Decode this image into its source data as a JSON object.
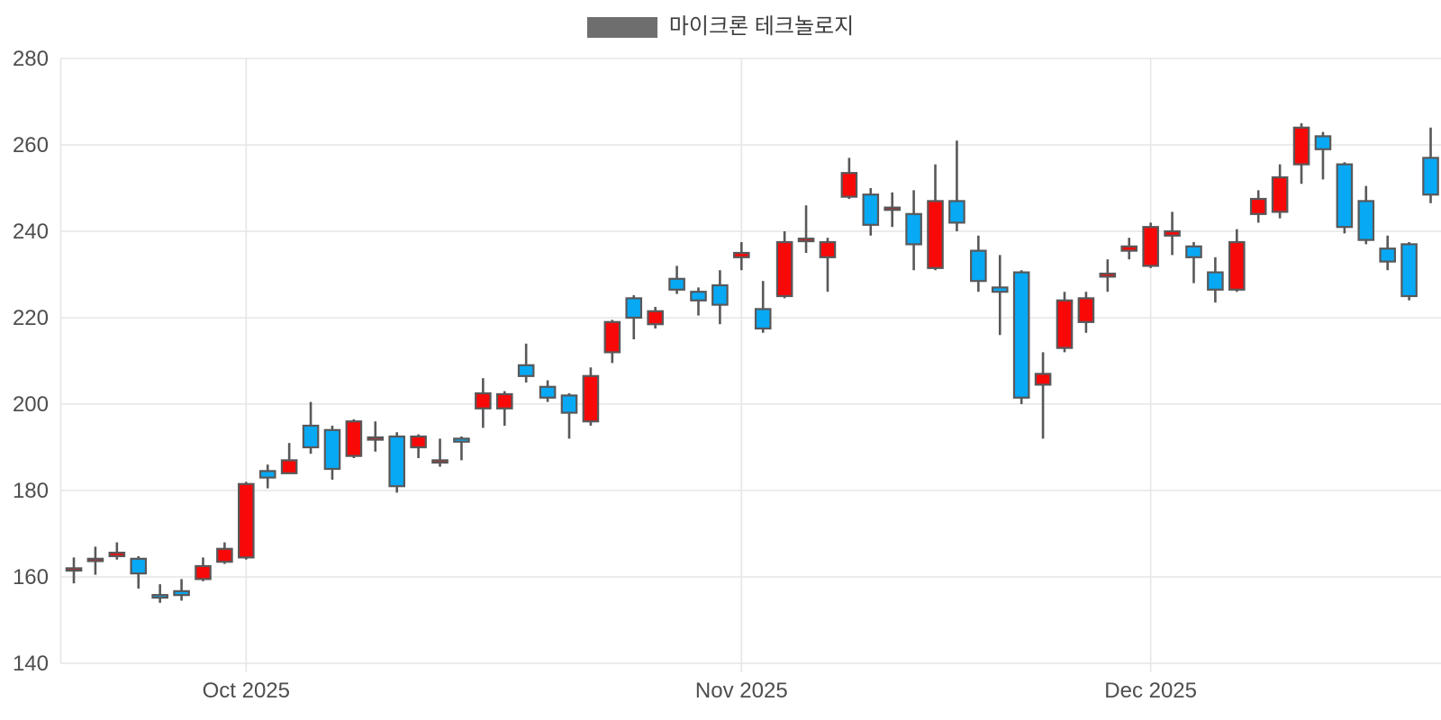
{
  "legend": {
    "series_label": "마이크론 테크놀로지",
    "swatch_color": "#6e6e6e"
  },
  "chart_data": {
    "type": "candlestick",
    "title": "",
    "series_name": "마이크론 테크놀로지",
    "grid": true,
    "legend_position": "top-center",
    "y_axis": {
      "min": 140,
      "max": 280,
      "tick_step": 20,
      "tick_labels": [
        "140",
        "160",
        "180",
        "200",
        "220",
        "240",
        "260",
        "280"
      ]
    },
    "x_axis": {
      "ticks": [
        {
          "index": 8,
          "label": "Oct 2025"
        },
        {
          "index": 31,
          "label": "Nov 2025"
        },
        {
          "index": 50,
          "label": "Dec 2025"
        }
      ]
    },
    "colors": {
      "up": "#f90808",
      "down": "#07a9f4",
      "outline": "#58585a",
      "grid": "#e6e6e6",
      "axis_text": "#4e4e50"
    },
    "candles_format": [
      "open",
      "high",
      "low",
      "close"
    ],
    "candles": [
      [
        161.5,
        164.5,
        158.5,
        162.0
      ],
      [
        163.8,
        167.0,
        160.5,
        164.2
      ],
      [
        164.8,
        168.0,
        164.0,
        165.6
      ],
      [
        164.2,
        164.8,
        157.3,
        160.8
      ],
      [
        155.8,
        158.3,
        154.0,
        155.2
      ],
      [
        156.7,
        159.5,
        154.5,
        155.8
      ],
      [
        159.5,
        164.5,
        159.0,
        162.5
      ],
      [
        163.5,
        168.0,
        163.0,
        166.5
      ],
      [
        164.5,
        182.0,
        164.0,
        181.5
      ],
      [
        184.5,
        186.0,
        180.5,
        183.0
      ],
      [
        184.0,
        191.0,
        184.0,
        187.0
      ],
      [
        195.0,
        200.5,
        188.5,
        190.0
      ],
      [
        194.0,
        195.0,
        182.5,
        185.0
      ],
      [
        188.0,
        196.5,
        187.5,
        196.0
      ],
      [
        192.0,
        196.0,
        189.0,
        192.3
      ],
      [
        192.5,
        193.5,
        179.5,
        181.0
      ],
      [
        190.0,
        193.0,
        187.5,
        192.5
      ],
      [
        186.5,
        192.0,
        185.5,
        187.0
      ],
      [
        192.0,
        192.5,
        187.0,
        191.3
      ],
      [
        199.0,
        206.0,
        194.5,
        202.5
      ],
      [
        199.0,
        203.0,
        195.0,
        202.3
      ],
      [
        209.0,
        214.0,
        205.0,
        206.5
      ],
      [
        204.0,
        205.5,
        200.5,
        201.5
      ],
      [
        202.0,
        202.5,
        192.0,
        198.0
      ],
      [
        196.0,
        208.5,
        195.0,
        206.5
      ],
      [
        212.0,
        219.5,
        209.5,
        219.0
      ],
      [
        224.5,
        225.2,
        215.0,
        220.0
      ],
      [
        218.5,
        222.5,
        217.5,
        221.5
      ],
      [
        229.0,
        232.0,
        225.5,
        226.5
      ],
      [
        226.0,
        227.0,
        220.5,
        224.0
      ],
      [
        227.5,
        231.0,
        218.5,
        223.0
      ],
      [
        234.0,
        237.5,
        231.0,
        235.0
      ],
      [
        222.0,
        228.5,
        216.5,
        217.5
      ],
      [
        225.0,
        240.0,
        224.5,
        237.5
      ],
      [
        237.7,
        246.0,
        235.0,
        238.3
      ],
      [
        234.0,
        238.5,
        226.0,
        237.5
      ],
      [
        248.0,
        257.0,
        247.5,
        253.5
      ],
      [
        248.5,
        250.0,
        239.0,
        241.5
      ],
      [
        245.0,
        249.0,
        241.0,
        245.5
      ],
      [
        244.0,
        249.5,
        231.0,
        237.0
      ],
      [
        231.5,
        255.5,
        231.0,
        247.0
      ],
      [
        247.0,
        261.0,
        240.0,
        242.0
      ],
      [
        235.5,
        239.0,
        226.0,
        228.5
      ],
      [
        227.0,
        234.5,
        216.0,
        226.0
      ],
      [
        230.5,
        231.0,
        200.0,
        201.5
      ],
      [
        204.5,
        212.0,
        192.0,
        207.0
      ],
      [
        213.0,
        226.0,
        212.0,
        224.0
      ],
      [
        219.0,
        226.0,
        216.5,
        224.5
      ],
      [
        229.5,
        233.5,
        226.0,
        230.2
      ],
      [
        235.5,
        238.5,
        233.5,
        236.5
      ],
      [
        232.0,
        242.0,
        231.5,
        241.0
      ],
      [
        239.0,
        244.5,
        234.5,
        240.0
      ],
      [
        236.5,
        237.5,
        228.0,
        234.0
      ],
      [
        230.5,
        234.0,
        223.5,
        226.5
      ],
      [
        226.5,
        240.5,
        226.0,
        237.5
      ],
      [
        244.0,
        249.5,
        242.0,
        247.5
      ],
      [
        244.5,
        255.5,
        243.0,
        252.5
      ],
      [
        255.5,
        265.0,
        251.0,
        264.0
      ],
      [
        262.0,
        263.0,
        252.0,
        259.0
      ],
      [
        255.5,
        256.0,
        239.5,
        241.0
      ],
      [
        247.0,
        250.5,
        237.0,
        238.0
      ],
      [
        236.0,
        239.0,
        231.0,
        233.0
      ],
      [
        237.0,
        237.5,
        224.0,
        225.0
      ],
      [
        257.0,
        264.0,
        246.5,
        248.5
      ]
    ]
  }
}
